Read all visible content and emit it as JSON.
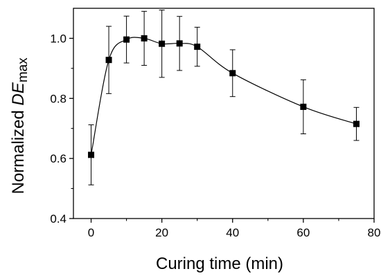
{
  "chart_data": {
    "type": "scatter",
    "title": "",
    "xlabel": "Curing time (min)",
    "ylabel": {
      "prefix": "Normalized ",
      "symbol": "DE",
      "subscript": "max"
    },
    "xlim": [
      -5,
      80
    ],
    "ylim": [
      0.4,
      1.1
    ],
    "xticks": [
      0,
      20,
      40,
      60,
      80
    ],
    "yticks": [
      0.4,
      0.6,
      0.8,
      1.0
    ],
    "xtick_labels": [
      "0",
      "20",
      "40",
      "60",
      "80"
    ],
    "ytick_labels": [
      "0.4",
      "0.6",
      "0.8",
      "1.0"
    ],
    "grid": false,
    "legend": "none",
    "marker": "filled-square",
    "fit_line": "smooth",
    "series": [
      {
        "x": [
          0,
          5,
          10,
          15,
          20,
          25,
          30,
          40,
          60,
          75
        ],
        "y": [
          0.612,
          0.928,
          0.996,
          1.0,
          0.982,
          0.983,
          0.972,
          0.884,
          0.772,
          0.715
        ],
        "error": [
          0.1,
          0.112,
          0.078,
          0.09,
          0.112,
          0.09,
          0.065,
          0.078,
          0.09,
          0.055
        ]
      }
    ],
    "colors": {
      "marker": "#000000",
      "line": "#000000",
      "axis": "#000000"
    }
  }
}
